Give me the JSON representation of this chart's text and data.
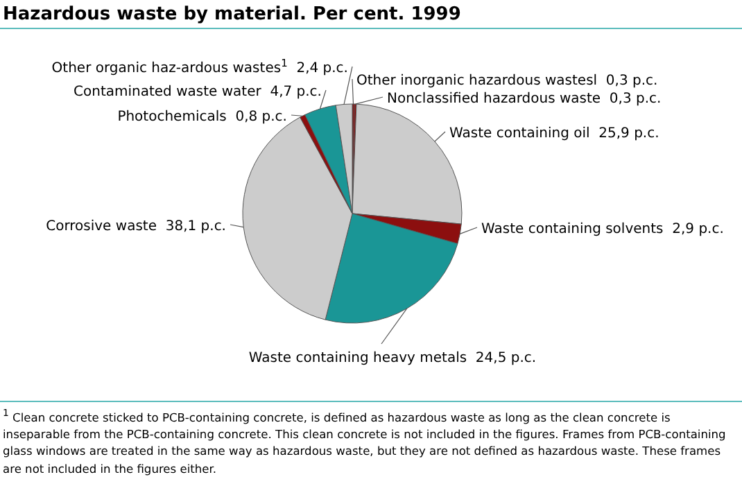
{
  "chart_data": {
    "type": "pie",
    "title": "Hazardous waste by material. Per cent. 1999",
    "categories": [
      "Other inorganic hazardous wastesl",
      "Nonclassified hazardous waste",
      "Waste containing oil",
      "Waste containing solvents",
      "Waste containing heavy metals",
      "Corrosive waste",
      "Photochemicals",
      "Contaminated waste water",
      "Other organic haz-ardous wastes$^{1}$"
    ],
    "values": [
      0.3,
      0.3,
      25.9,
      2.9,
      24.5,
      38.1,
      0.8,
      4.7,
      2.4
    ],
    "value_labels": [
      "0,3 p.c.",
      "0,3 p.c.",
      "25,9 p.c.",
      "2,9 p.c.",
      "24,5 p.c.",
      "38,1 p.c.",
      "0,8 p.c.",
      "4,7 p.c.",
      "2,4 p.c."
    ],
    "colors": [
      "#8c0f0f",
      "#8c0f0f",
      "#cccccc",
      "#8c0f0f",
      "#1a9696",
      "#cccccc",
      "#8c0f0f",
      "#1a9696",
      "#cccccc"
    ],
    "annotations": [
      "$^{1}$ Clean concrete sticked to PCB-containing concrete, is defined as hazardous waste as long as the clean concrete is inseparable from the PCB-containing concrete. This clean concrete is not included in the figures. Frames from PCB-containing glass windows are treated in the same way as hazardous waste, but they are not defined as hazardous waste. These frames are not included in the figures either."
    ]
  }
}
